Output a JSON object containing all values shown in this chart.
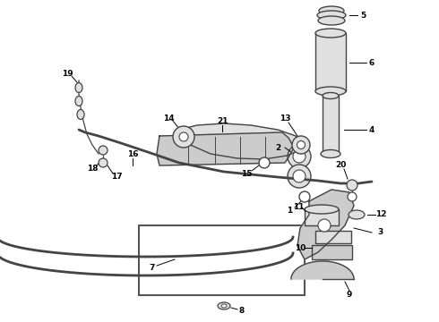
{
  "background_color": "#ffffff",
  "fig_width": 4.9,
  "fig_height": 3.6,
  "dpi": 100,
  "pc": "#444444",
  "lc": "#666666",
  "fc": "#cccccc",
  "fc2": "#e0e0e0"
}
